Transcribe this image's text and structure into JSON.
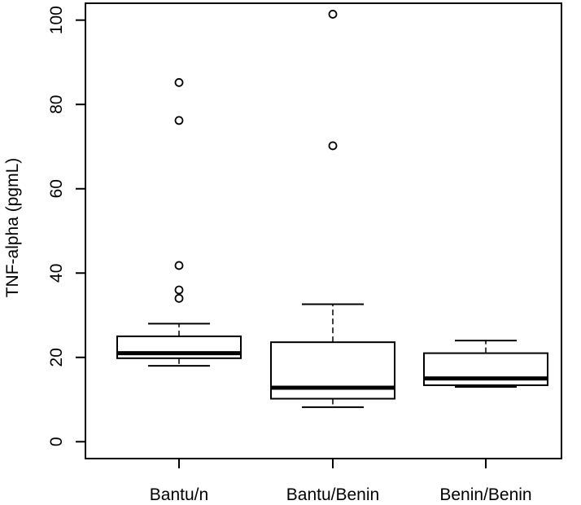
{
  "chart_data": {
    "type": "box",
    "ylabel": "TNF-alpha (pgmL)",
    "xlabel": "",
    "title": "",
    "ylim": [
      -4,
      104
    ],
    "yticks": [
      0,
      20,
      40,
      60,
      80,
      100
    ],
    "categories": [
      "Bantu/n",
      "Bantu/Benin",
      "Benin/Benin"
    ],
    "boxes": [
      {
        "whisker_low": 18,
        "q1": 19.8,
        "median": 21,
        "q3": 25,
        "whisker_high": 28,
        "outliers": [
          34,
          36,
          41.8,
          76.2,
          85.2
        ]
      },
      {
        "whisker_low": 8.2,
        "q1": 10.2,
        "median": 12.8,
        "q3": 23.6,
        "whisker_high": 32.6,
        "outliers": [
          70.2,
          101.4
        ]
      },
      {
        "whisker_low": 13,
        "q1": 13.4,
        "median": 15,
        "q3": 21,
        "whisker_high": 24,
        "outliers": []
      }
    ],
    "grid": false,
    "legend": "none"
  }
}
